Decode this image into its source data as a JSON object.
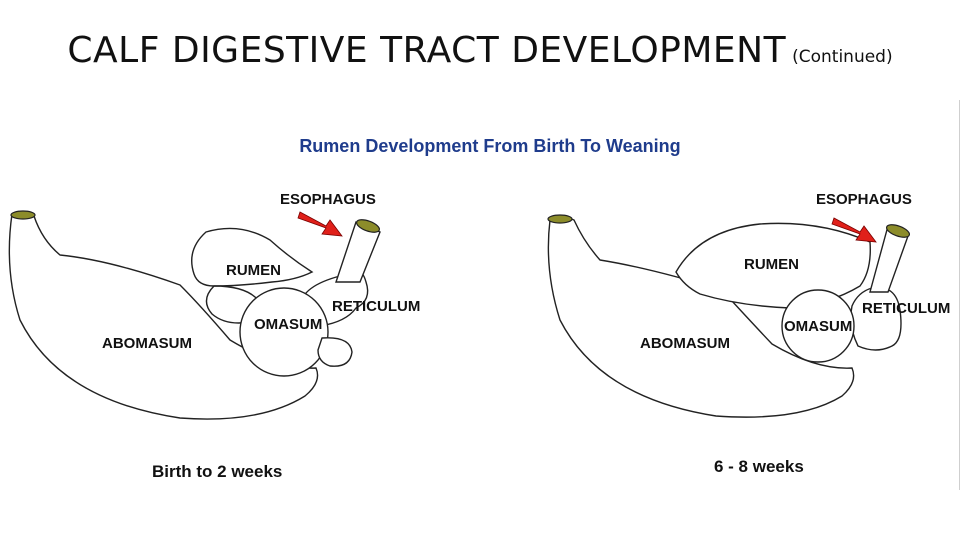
{
  "slide": {
    "title": "CALF DIGESTIVE TRACT DEVELOPMENT",
    "subtitle": "(Continued)"
  },
  "figure": {
    "heading": "Rumen Development From Birth To Weaning",
    "left_panel": {
      "caption": "Birth to 2 weeks",
      "labels": {
        "esophagus": "ESOPHAGUS",
        "rumen": "RUMEN",
        "reticulum": "RETICULUM",
        "omasum": "OMASUM",
        "abomasum": "ABOMASUM"
      }
    },
    "right_panel": {
      "caption": "6 - 8 weeks",
      "labels": {
        "esophagus": "ESOPHAGUS",
        "rumen": "RUMEN",
        "reticulum": "RETICULUM",
        "omasum": "OMASUM",
        "abomasum": "ABOMASUM"
      }
    },
    "colors": {
      "heading": "#1f3c8c",
      "arrow": "#e0201a",
      "opening": "#8c8c2a"
    }
  }
}
